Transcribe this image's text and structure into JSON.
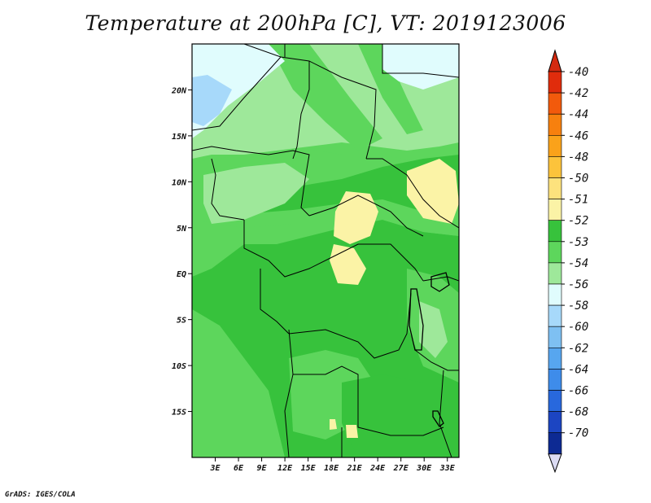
{
  "chart_data": {
    "type": "heatmap",
    "title": "Temperature at 200hPa [C], VT: 2019123006",
    "field": "Temperature",
    "level": "200hPa",
    "units": "C",
    "valid_time": "2019123006",
    "xlim": [
      0,
      34.5
    ],
    "ylim": [
      -20,
      25
    ],
    "x_ticks": [
      {
        "value": 3,
        "label": "3E"
      },
      {
        "value": 6,
        "label": "6E"
      },
      {
        "value": 9,
        "label": "9E"
      },
      {
        "value": 12,
        "label": "12E"
      },
      {
        "value": 15,
        "label": "15E"
      },
      {
        "value": 18,
        "label": "18E"
      },
      {
        "value": 21,
        "label": "21E"
      },
      {
        "value": 24,
        "label": "24E"
      },
      {
        "value": 27,
        "label": "27E"
      },
      {
        "value": 30,
        "label": "30E"
      },
      {
        "value": 33,
        "label": "33E"
      }
    ],
    "y_ticks": [
      {
        "value": 20,
        "label": "20N"
      },
      {
        "value": 15,
        "label": "15N"
      },
      {
        "value": 10,
        "label": "10N"
      },
      {
        "value": 5,
        "label": "5N"
      },
      {
        "value": 0,
        "label": "EQ"
      },
      {
        "value": -5,
        "label": "5S"
      },
      {
        "value": -10,
        "label": "10S"
      },
      {
        "value": -15,
        "label": "15S"
      }
    ],
    "colorbar": {
      "levels": [
        {
          "label": "-40",
          "color": "#e02c0c"
        },
        {
          "label": "-42",
          "color": "#f25a0c"
        },
        {
          "label": "-44",
          "color": "#f7800e"
        },
        {
          "label": "-46",
          "color": "#faa21a"
        },
        {
          "label": "-48",
          "color": "#fcc33b"
        },
        {
          "label": "-50",
          "color": "#fde27d"
        },
        {
          "label": "-51",
          "color": "#fbf3a6"
        },
        {
          "label": "-52",
          "color": "#37c23c"
        },
        {
          "label": "-53",
          "color": "#5dd65c"
        },
        {
          "label": "-54",
          "color": "#9ee89a"
        },
        {
          "label": "-56",
          "color": "#e0fcfd"
        },
        {
          "label": "-58",
          "color": "#a7d9fa"
        },
        {
          "label": "-60",
          "color": "#7ec0f2"
        },
        {
          "label": "-62",
          "color": "#57a6ef"
        },
        {
          "label": "-64",
          "color": "#3e8cea"
        },
        {
          "label": "-66",
          "color": "#2868dd"
        },
        {
          "label": "-68",
          "color": "#1c45c2"
        },
        {
          "label": "-70",
          "color": "#0d2a93"
        }
      ],
      "top_color": "#d42a10",
      "bottom_arrow_color": "#dcdcf4",
      "low_end_color": "#0a1570"
    },
    "regions": [
      {
        "level": "-54",
        "note": "Sahara / northern Africa band, cooler air north of ~12N"
      },
      {
        "level": "-56",
        "note": "Cold pocket over northwest corner near 20N 2E"
      },
      {
        "level": "-53",
        "note": "Broad belt across Sahel and southern Africa"
      },
      {
        "level": "-52",
        "note": "Central Africa and southern interior"
      },
      {
        "level": "-51",
        "note": "Warm patches over CAR, South Sudan and northern DRC"
      }
    ]
  },
  "footer": "GrADS: IGES/COLA"
}
